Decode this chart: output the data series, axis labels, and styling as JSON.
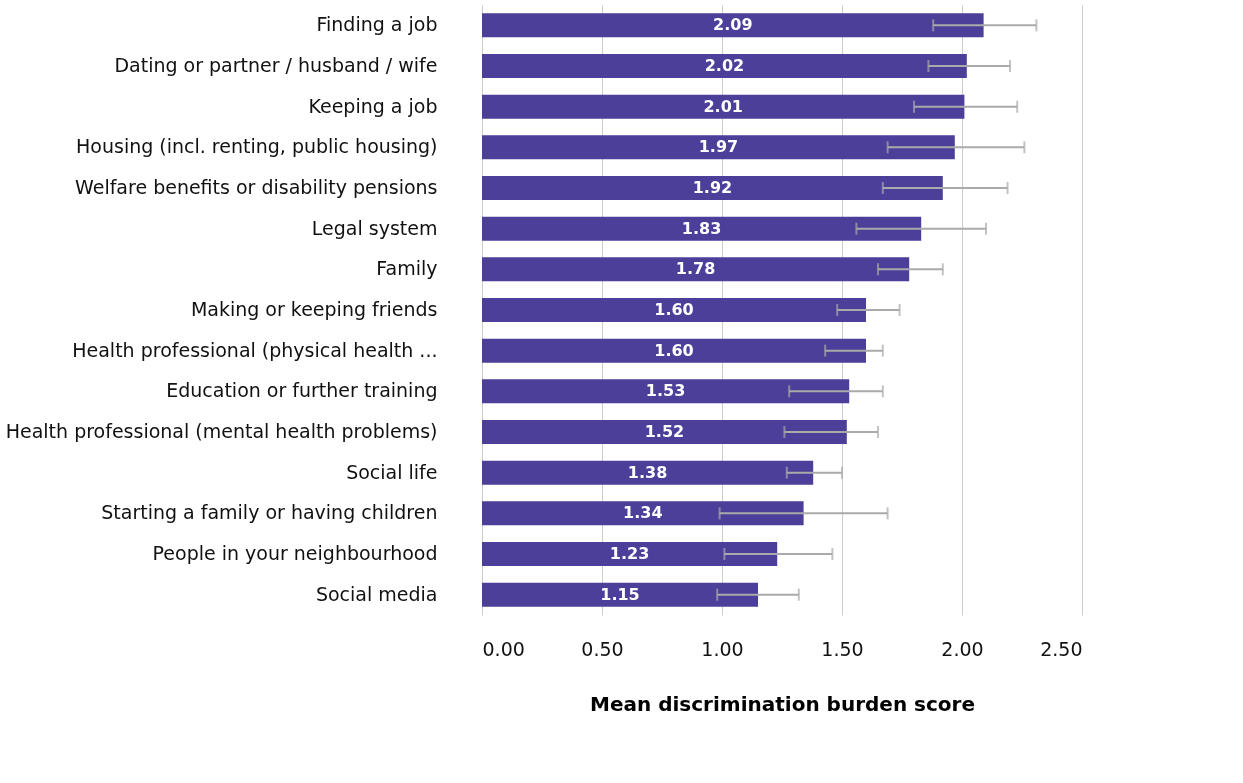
{
  "chart_data": {
    "type": "bar",
    "orientation": "horizontal",
    "xlabel": "Mean discrimination burden score",
    "categories": [
      "Finding a job",
      "Dating or partner / husband / wife",
      "Keeping a job",
      "Housing (incl. renting, public housing)",
      "Welfare benefits or disability pensions",
      "Legal system",
      "Family",
      "Making or keeping friends",
      "Health professional (physical health ...",
      "Education or further training",
      "Health professional (mental health problems)",
      "Social life",
      "Starting a family or having children",
      "People in your neighbourhood",
      "Social media"
    ],
    "values": [
      2.09,
      2.02,
      2.01,
      1.97,
      1.92,
      1.83,
      1.78,
      1.6,
      1.6,
      1.53,
      1.52,
      1.38,
      1.34,
      1.23,
      1.15
    ],
    "errors": [
      [
        1.88,
        2.31
      ],
      [
        1.86,
        2.2
      ],
      [
        1.8,
        2.23
      ],
      [
        1.69,
        2.26
      ],
      [
        1.67,
        2.19
      ],
      [
        1.56,
        2.1
      ],
      [
        1.65,
        1.92
      ],
      [
        1.48,
        1.74
      ],
      [
        1.43,
        1.67
      ],
      [
        1.28,
        1.67
      ],
      [
        1.26,
        1.65
      ],
      [
        1.27,
        1.5
      ],
      [
        0.99,
        1.69
      ],
      [
        1.01,
        1.46
      ],
      [
        0.98,
        1.32
      ]
    ],
    "color": "#4b3f9a",
    "value_labels": [
      "2.09",
      "2.02",
      "2.01",
      "1.97",
      "1.92",
      "1.83",
      "1.78",
      "1.60",
      "1.60",
      "1.53",
      "1.52",
      "1.38",
      "1.34",
      "1.23",
      "1.15"
    ],
    "grid": "x",
    "xlim": [
      0,
      2.5
    ],
    "xticks": [
      {
        "value": 0,
        "label": "0.00"
      },
      {
        "value": 0.5,
        "label": "0.50"
      },
      {
        "value": 1,
        "label": "1.00"
      },
      {
        "value": 1.5,
        "label": "1.50"
      },
      {
        "value": 2,
        "label": "2.00"
      },
      {
        "value": 2.5,
        "label": "2.50"
      }
    ]
  }
}
